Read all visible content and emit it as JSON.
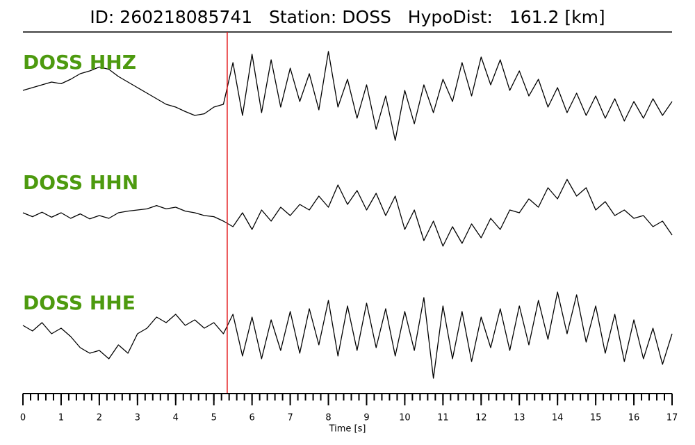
{
  "chart_data": {
    "type": "line",
    "title": "ID: 260218085741   Station: DOSS   HypoDist:   161.2 [km]",
    "xlabel": "Time [s]",
    "xlim": [
      0,
      17
    ],
    "xticks": [
      0,
      1,
      2,
      3,
      4,
      5,
      6,
      7,
      8,
      9,
      10,
      11,
      12,
      13,
      14,
      15,
      16,
      17
    ],
    "xminor_step": 0.2,
    "ylim": [
      -1,
      1
    ],
    "pick_time": 5.35,
    "pick_color": "#e41a1c",
    "label_color": "#4d9a0f",
    "x": [
      0,
      0.25,
      0.5,
      0.75,
      1,
      1.25,
      1.5,
      1.75,
      2,
      2.25,
      2.5,
      2.75,
      3,
      3.25,
      3.5,
      3.75,
      4,
      4.25,
      4.5,
      4.75,
      5,
      5.25,
      5.5,
      5.75,
      6,
      6.25,
      6.5,
      6.75,
      7,
      7.25,
      7.5,
      7.75,
      8,
      8.25,
      8.5,
      8.75,
      9,
      9.25,
      9.5,
      9.75,
      10,
      10.25,
      10.5,
      10.75,
      11,
      11.25,
      11.5,
      11.75,
      12,
      12.25,
      12.5,
      12.75,
      13,
      13.25,
      13.5,
      13.75,
      14,
      14.25,
      14.5,
      14.75,
      15,
      15.25,
      15.5,
      15.75,
      16,
      16.25,
      16.5,
      16.75,
      17
    ],
    "series": [
      {
        "name": "DOSS HHZ",
        "color": "#000000",
        "values": [
          0.0,
          0.05,
          0.1,
          0.15,
          0.12,
          0.2,
          0.3,
          0.35,
          0.42,
          0.38,
          0.25,
          0.15,
          0.05,
          -0.05,
          -0.15,
          -0.25,
          -0.3,
          -0.38,
          -0.45,
          -0.42,
          -0.3,
          -0.25,
          0.5,
          -0.45,
          0.65,
          -0.4,
          0.55,
          -0.3,
          0.4,
          -0.2,
          0.3,
          -0.35,
          0.7,
          -0.3,
          0.2,
          -0.5,
          0.1,
          -0.7,
          -0.1,
          -0.9,
          0.0,
          -0.6,
          0.1,
          -0.4,
          0.2,
          -0.2,
          0.5,
          -0.1,
          0.6,
          0.1,
          0.55,
          0.0,
          0.35,
          -0.1,
          0.2,
          -0.3,
          0.05,
          -0.4,
          -0.05,
          -0.45,
          -0.1,
          -0.5,
          -0.15,
          -0.55,
          -0.2,
          -0.5,
          -0.15,
          -0.45,
          -0.2
        ]
      },
      {
        "name": "DOSS HHN",
        "color": "#000000",
        "values": [
          0.05,
          -0.02,
          0.06,
          -0.03,
          0.05,
          -0.05,
          0.03,
          -0.06,
          0.0,
          -0.05,
          0.05,
          0.08,
          0.1,
          0.12,
          0.18,
          0.12,
          0.15,
          0.08,
          0.05,
          0.0,
          -0.02,
          -0.1,
          -0.2,
          0.05,
          -0.25,
          0.1,
          -0.1,
          0.15,
          0.0,
          0.2,
          0.1,
          0.35,
          0.15,
          0.55,
          0.2,
          0.45,
          0.1,
          0.4,
          0.0,
          0.35,
          -0.25,
          0.1,
          -0.45,
          -0.1,
          -0.55,
          -0.2,
          -0.5,
          -0.15,
          -0.4,
          -0.05,
          -0.25,
          0.1,
          0.05,
          0.3,
          0.15,
          0.5,
          0.3,
          0.65,
          0.35,
          0.5,
          0.1,
          0.25,
          0.0,
          0.1,
          -0.05,
          0.0,
          -0.2,
          -0.1,
          -0.35
        ]
      },
      {
        "name": "DOSS HHE",
        "color": "#000000",
        "values": [
          0.15,
          0.05,
          0.2,
          0.0,
          0.1,
          -0.05,
          -0.25,
          -0.35,
          -0.3,
          -0.45,
          -0.2,
          -0.35,
          0.0,
          0.1,
          0.3,
          0.2,
          0.35,
          0.15,
          0.25,
          0.1,
          0.2,
          0.0,
          0.35,
          -0.4,
          0.3,
          -0.45,
          0.25,
          -0.3,
          0.4,
          -0.35,
          0.45,
          -0.2,
          0.6,
          -0.4,
          0.5,
          -0.3,
          0.55,
          -0.25,
          0.45,
          -0.4,
          0.4,
          -0.3,
          0.65,
          -0.8,
          0.5,
          -0.45,
          0.4,
          -0.5,
          0.3,
          -0.25,
          0.45,
          -0.3,
          0.5,
          -0.2,
          0.6,
          -0.1,
          0.75,
          0.0,
          0.7,
          -0.15,
          0.5,
          -0.35,
          0.35,
          -0.5,
          0.25,
          -0.45,
          0.1,
          -0.55,
          0.0
        ]
      }
    ]
  }
}
